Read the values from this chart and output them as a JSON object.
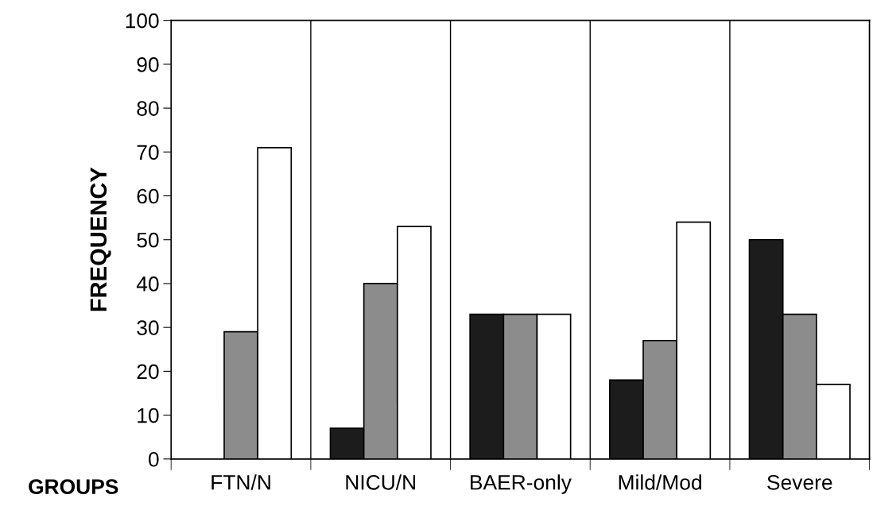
{
  "chart_data": {
    "type": "bar",
    "xlabel": "GROUPS",
    "ylabel": "FREQUENCY",
    "categories": [
      "FTN/N",
      "NICU/N",
      "BAER-only",
      "Mild/Mod",
      "Severe"
    ],
    "series": [
      {
        "color": "#1c1c1c",
        "values": [
          null,
          7,
          33,
          18,
          50
        ]
      },
      {
        "color": "#8c8c8c",
        "values": [
          29,
          40,
          33,
          27,
          33
        ]
      },
      {
        "color": "#ffffff",
        "values": [
          71,
          53,
          33,
          54,
          17
        ]
      }
    ],
    "ylim": [
      0,
      100
    ],
    "yticks": [
      0,
      10,
      20,
      30,
      40,
      50,
      60,
      70,
      80,
      90,
      100
    ],
    "grid": "x",
    "legend": false
  }
}
